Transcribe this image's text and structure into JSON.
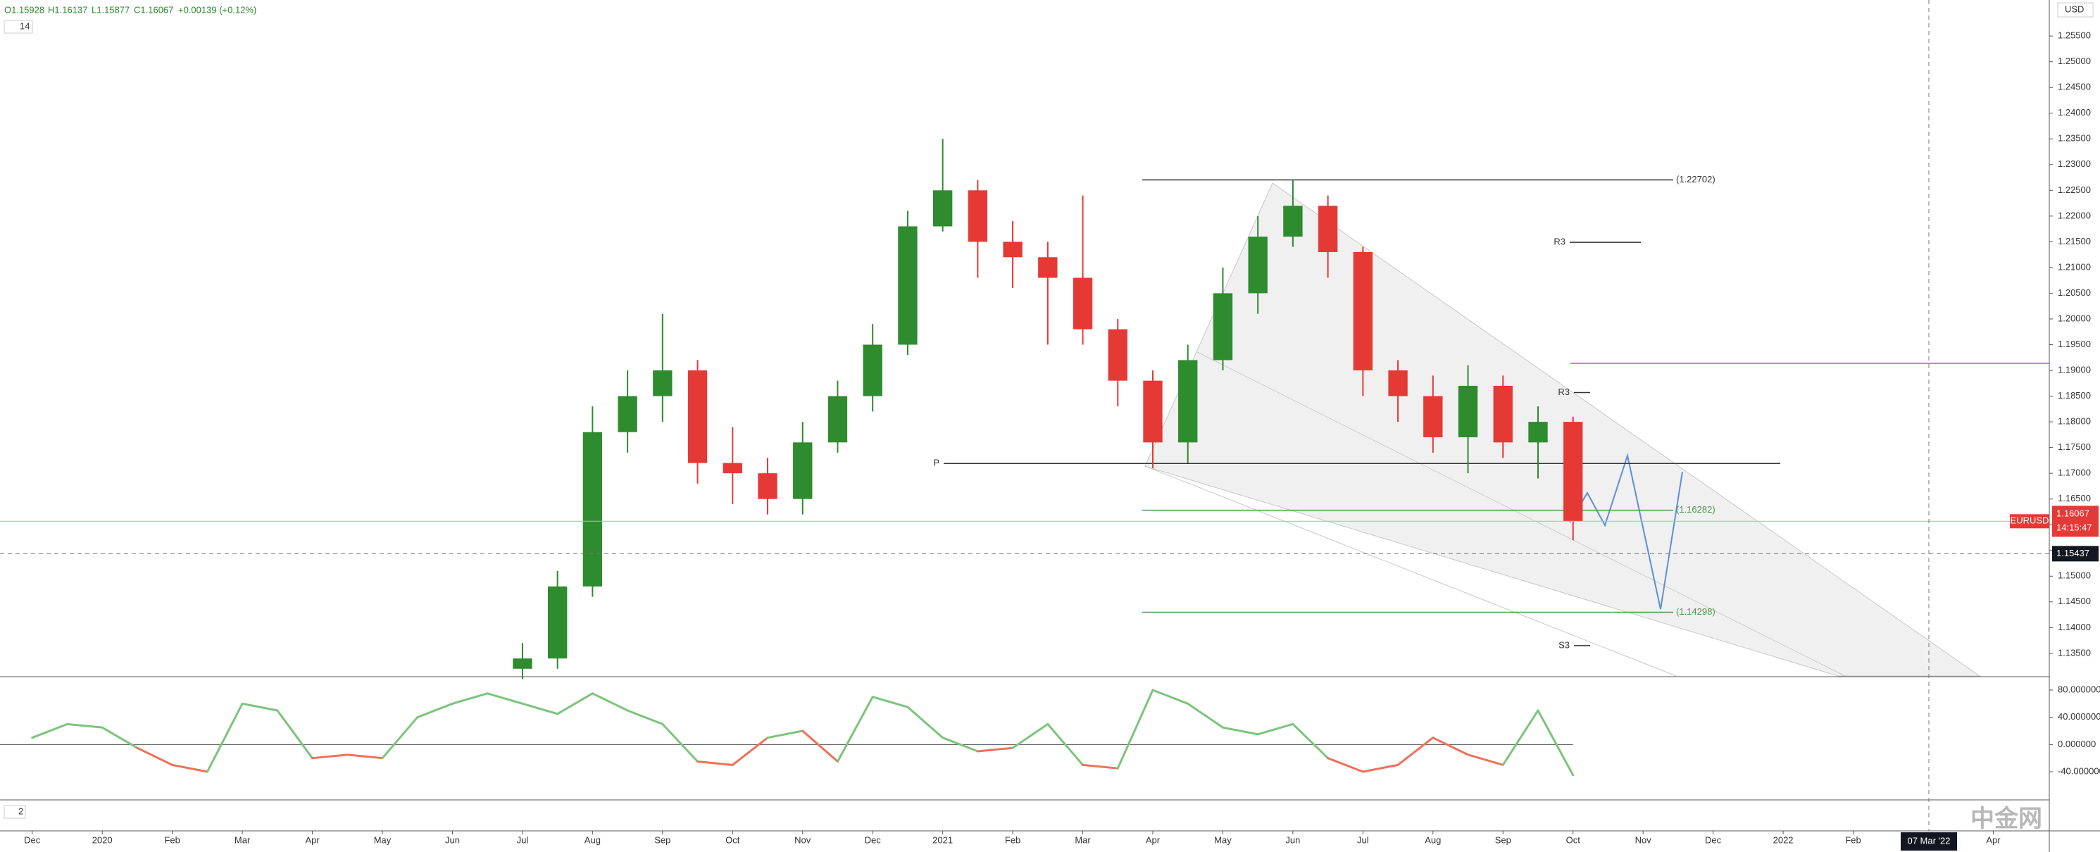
{
  "chart_data": {
    "type": "candlestick",
    "symbol": "EURUSD",
    "currency": "USD",
    "interval": "14",
    "pane3_label": "2",
    "ohlc_header": [
      "O1.15928",
      "H1.16137",
      "L1.15877",
      "C1.16067",
      "+0.00139 (+0.12%)"
    ],
    "last_price": 1.16067,
    "countdown": "14:15:47",
    "crosshair_price": 1.15437,
    "crosshair_date": "07 Mar '22",
    "watermark": "中金网",
    "x": [
      7,
      7.5,
      8,
      8.5,
      9,
      9.5,
      10,
      10.5,
      11,
      11.5,
      12,
      12.5,
      13,
      13.5,
      14,
      14.5,
      15,
      15.5,
      16,
      16.5,
      17,
      17.5,
      18,
      18.5,
      19,
      19.5,
      20,
      20.5,
      21,
      21.5,
      22
    ],
    "open": [
      1.132,
      1.134,
      1.148,
      1.178,
      1.185,
      1.19,
      1.172,
      1.17,
      1.165,
      1.176,
      1.185,
      1.195,
      1.218,
      1.225,
      1.215,
      1.212,
      1.208,
      1.198,
      1.188,
      1.176,
      1.192,
      1.205,
      1.216,
      1.222,
      1.213,
      1.19,
      1.185,
      1.177,
      1.187,
      1.176,
      1.18
    ],
    "high": [
      1.137,
      1.151,
      1.183,
      1.19,
      1.201,
      1.192,
      1.179,
      1.173,
      1.18,
      1.188,
      1.199,
      1.221,
      1.235,
      1.227,
      1.219,
      1.215,
      1.224,
      1.2,
      1.19,
      1.195,
      1.21,
      1.22,
      1.227,
      1.224,
      1.214,
      1.192,
      1.189,
      1.191,
      1.189,
      1.183,
      1.181
    ],
    "low": [
      1.13,
      1.132,
      1.146,
      1.174,
      1.18,
      1.168,
      1.164,
      1.162,
      1.162,
      1.174,
      1.182,
      1.193,
      1.217,
      1.208,
      1.206,
      1.195,
      1.195,
      1.183,
      1.171,
      1.172,
      1.19,
      1.201,
      1.214,
      1.208,
      1.185,
      1.18,
      1.174,
      1.17,
      1.173,
      1.169,
      1.157
    ],
    "close": [
      1.134,
      1.148,
      1.178,
      1.185,
      1.19,
      1.172,
      1.17,
      1.165,
      1.176,
      1.185,
      1.195,
      1.218,
      1.225,
      1.215,
      1.212,
      1.208,
      1.198,
      1.188,
      1.176,
      1.192,
      1.205,
      1.216,
      1.222,
      1.213,
      1.19,
      1.185,
      1.177,
      1.187,
      1.176,
      1.18,
      1.1607
    ],
    "up_color": "#2e8b2e",
    "down_color": "#e53935",
    "xlim": [
      -0.46,
      28.8
    ],
    "xticks": [
      {
        "value": 0,
        "label": "Dec"
      },
      {
        "value": 1,
        "label": "2020"
      },
      {
        "value": 2,
        "label": "Feb"
      },
      {
        "value": 3,
        "label": "Mar"
      },
      {
        "value": 4,
        "label": "Apr"
      },
      {
        "value": 5,
        "label": "May"
      },
      {
        "value": 6,
        "label": "Jun"
      },
      {
        "value": 7,
        "label": "Jul"
      },
      {
        "value": 8,
        "label": "Aug"
      },
      {
        "value": 9,
        "label": "Sep"
      },
      {
        "value": 10,
        "label": "Oct"
      },
      {
        "value": 11,
        "label": "Nov"
      },
      {
        "value": 12,
        "label": "Dec"
      },
      {
        "value": 13,
        "label": "2021"
      },
      {
        "value": 14,
        "label": "Feb"
      },
      {
        "value": 15,
        "label": "Mar"
      },
      {
        "value": 16,
        "label": "Apr"
      },
      {
        "value": 17,
        "label": "May"
      },
      {
        "value": 18,
        "label": "Jun"
      },
      {
        "value": 19,
        "label": "Jul"
      },
      {
        "value": 20,
        "label": "Aug"
      },
      {
        "value": 21,
        "label": "Sep"
      },
      {
        "value": 22,
        "label": "Oct"
      },
      {
        "value": 23,
        "label": "Nov"
      },
      {
        "value": 24,
        "label": "Dec"
      },
      {
        "value": 25,
        "label": "2022"
      },
      {
        "value": 26,
        "label": "Feb"
      },
      {
        "value": 28,
        "label": "Apr"
      }
    ],
    "ylim": [
      1.1306,
      1.262
    ],
    "yticks": [
      {
        "value": 1.135,
        "label": "1.13500"
      },
      {
        "value": 1.14,
        "label": "1.14000"
      },
      {
        "value": 1.145,
        "label": "1.14500"
      },
      {
        "value": 1.15,
        "label": "1.15000"
      },
      {
        "value": 1.155,
        "label": "1.15500"
      },
      {
        "value": 1.16,
        "label": "1.16000"
      },
      {
        "value": 1.165,
        "label": "1.16500"
      },
      {
        "value": 1.17,
        "label": "1.17000"
      },
      {
        "value": 1.175,
        "label": "1.17500"
      },
      {
        "value": 1.18,
        "label": "1.18000"
      },
      {
        "value": 1.185,
        "label": "1.18500"
      },
      {
        "value": 1.19,
        "label": "1.19000"
      },
      {
        "value": 1.195,
        "label": "1.19500"
      },
      {
        "value": 1.2,
        "label": "1.20000"
      },
      {
        "value": 1.205,
        "label": "1.20500"
      },
      {
        "value": 1.21,
        "label": "1.21000"
      },
      {
        "value": 1.215,
        "label": "1.21500"
      },
      {
        "value": 1.22,
        "label": "1.22000"
      },
      {
        "value": 1.225,
        "label": "1.22500"
      },
      {
        "value": 1.23,
        "label": "1.23000"
      },
      {
        "value": 1.235,
        "label": "1.23500"
      },
      {
        "value": 1.24,
        "label": "1.24000"
      },
      {
        "value": 1.245,
        "label": "1.24500"
      },
      {
        "value": 1.25,
        "label": "1.25000"
      },
      {
        "value": 1.255,
        "label": "1.25500"
      }
    ],
    "levels": [
      {
        "value": 1.22702,
        "label": "(1.22702)",
        "color": "#333333"
      },
      {
        "value": 1.16282,
        "label": "(1.16282)",
        "color": "#4c9a4c"
      },
      {
        "value": 1.14298,
        "label": "(1.14298)",
        "color": "#4c9a4c"
      },
      {
        "value": 1.1719,
        "label": "P",
        "color": "#333333"
      },
      {
        "value": 1.2149,
        "label": "R3",
        "color": "#333333"
      },
      {
        "value": 1.1857,
        "label": "R3",
        "color": "#333333"
      },
      {
        "value": 1.1365,
        "label": "S3",
        "color": "#333333"
      }
    ],
    "oscillator": {
      "x": [
        0,
        0.5,
        1,
        1.5,
        2,
        2.5,
        3,
        3.5,
        4,
        4.5,
        5,
        5.5,
        6,
        6.5,
        7,
        7.5,
        8,
        8.5,
        9,
        9.5,
        10,
        10.5,
        11,
        11.5,
        12,
        12.5,
        13,
        13.5,
        14,
        14.5,
        15,
        15.5,
        16,
        16.5,
        17,
        17.5,
        18,
        18.5,
        19,
        19.5,
        20,
        20.5,
        21,
        21.5,
        22
      ],
      "values": [
        10,
        30,
        25,
        -5,
        -30,
        -40,
        60,
        50,
        -20,
        -15,
        -20,
        40,
        60,
        75,
        60,
        45,
        75,
        50,
        30,
        -25,
        -30,
        10,
        20,
        -25,
        70,
        55,
        10,
        -10,
        -5,
        30,
        -30,
        -35,
        80,
        60,
        25,
        15,
        30,
        -20,
        -40,
        -30,
        10,
        -15,
        -30,
        50,
        -45
      ],
      "up_color": "#7cc47c",
      "down_color": "#f0705a",
      "ylim": [
        -80.3,
        98.6
      ],
      "yticks": [
        {
          "value": 80,
          "label": "80.000000"
        },
        {
          "value": 40,
          "label": "40.000000"
        },
        {
          "value": 0,
          "label": "0.000000"
        },
        {
          "value": -40,
          "label": "-40.000000"
        }
      ]
    }
  }
}
